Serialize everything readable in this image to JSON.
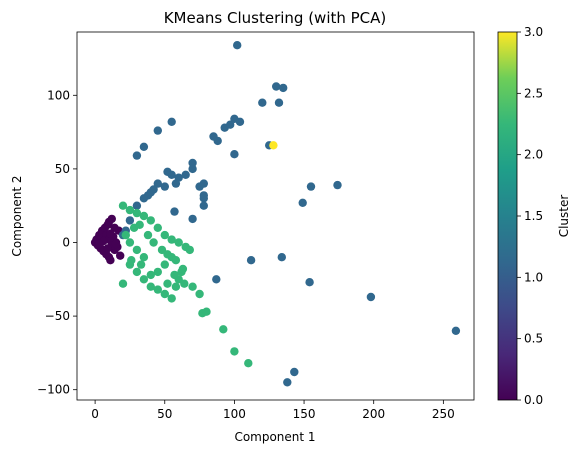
{
  "chart_data": {
    "type": "scatter",
    "title": "KMeans Clustering (with PCA)",
    "xlabel": "Component 1",
    "ylabel": "Component 2",
    "xlim": [
      -13,
      272
    ],
    "ylim": [
      -107,
      143
    ],
    "xticks": [
      0,
      50,
      100,
      150,
      200,
      250
    ],
    "yticks": [
      -100,
      -50,
      0,
      50,
      100
    ],
    "grid": false,
    "colormap": "viridis",
    "colorbar": {
      "label": "Cluster",
      "range": [
        0,
        3
      ],
      "ticks": [
        "0.0",
        "0.5",
        "1.0",
        "1.5",
        "2.0",
        "2.5",
        "3.0"
      ]
    },
    "series": [
      {
        "cluster": 0,
        "color": "#440154",
        "points": [
          [
            0,
            0
          ],
          [
            1,
            2
          ],
          [
            2,
            -2
          ],
          [
            3,
            5
          ],
          [
            4,
            -4
          ],
          [
            5,
            8
          ],
          [
            6,
            -6
          ],
          [
            7,
            10
          ],
          [
            8,
            -8
          ],
          [
            9,
            12
          ],
          [
            10,
            -10
          ],
          [
            10,
            14
          ],
          [
            11,
            -12
          ],
          [
            12,
            16
          ],
          [
            13,
            4
          ],
          [
            14,
            -5
          ],
          [
            15,
            0
          ],
          [
            16,
            -3
          ],
          [
            17,
            8
          ],
          [
            18,
            -9
          ],
          [
            5,
            3
          ],
          [
            8,
            5
          ],
          [
            10,
            2
          ],
          [
            12,
            -2
          ],
          [
            14,
            10
          ],
          [
            15,
            -1
          ],
          [
            11,
            6
          ],
          [
            6,
            1
          ],
          [
            3,
            -1
          ],
          [
            9,
            -4
          ]
        ]
      },
      {
        "cluster": 1,
        "color": "#31688e",
        "points": [
          [
            102,
            134
          ],
          [
            130,
            106
          ],
          [
            135,
            105
          ],
          [
            120,
            95
          ],
          [
            132,
            95
          ],
          [
            93,
            78
          ],
          [
            97,
            80
          ],
          [
            100,
            84
          ],
          [
            104,
            82
          ],
          [
            55,
            82
          ],
          [
            45,
            76
          ],
          [
            85,
            72
          ],
          [
            88,
            69
          ],
          [
            35,
            65
          ],
          [
            30,
            59
          ],
          [
            125,
            66
          ],
          [
            100,
            60
          ],
          [
            70,
            54
          ],
          [
            70,
            50
          ],
          [
            52,
            48
          ],
          [
            55,
            46
          ],
          [
            60,
            44
          ],
          [
            65,
            46
          ],
          [
            58,
            40
          ],
          [
            45,
            40
          ],
          [
            50,
            38
          ],
          [
            42,
            36
          ],
          [
            40,
            34
          ],
          [
            38,
            32
          ],
          [
            75,
            38
          ],
          [
            78,
            40
          ],
          [
            78,
            32
          ],
          [
            78,
            30
          ],
          [
            78,
            25
          ],
          [
            57,
            21
          ],
          [
            70,
            16
          ],
          [
            155,
            38
          ],
          [
            174,
            39
          ],
          [
            149,
            27
          ],
          [
            112,
            -12
          ],
          [
            134,
            -10
          ],
          [
            154,
            -27
          ],
          [
            198,
            -37
          ],
          [
            259,
            -60
          ],
          [
            87,
            -25
          ],
          [
            143,
            -88
          ],
          [
            138,
            -95
          ],
          [
            35,
            30
          ],
          [
            30,
            25
          ],
          [
            25,
            15
          ],
          [
            22,
            8
          ],
          [
            20,
            5
          ]
        ]
      },
      {
        "cluster": 2,
        "color": "#35b779",
        "points": [
          [
            20,
            25
          ],
          [
            25,
            22
          ],
          [
            30,
            20
          ],
          [
            35,
            18
          ],
          [
            40,
            15
          ],
          [
            45,
            10
          ],
          [
            50,
            5
          ],
          [
            55,
            2
          ],
          [
            60,
            0
          ],
          [
            65,
            -3
          ],
          [
            68,
            -5
          ],
          [
            20,
            -28
          ],
          [
            25,
            -15
          ],
          [
            30,
            -20
          ],
          [
            35,
            -25
          ],
          [
            40,
            -30
          ],
          [
            45,
            -32
          ],
          [
            50,
            -35
          ],
          [
            55,
            -38
          ],
          [
            58,
            -30
          ],
          [
            60,
            -25
          ],
          [
            62,
            -20
          ],
          [
            55,
            -10
          ],
          [
            50,
            -15
          ],
          [
            45,
            -20
          ],
          [
            40,
            -22
          ],
          [
            35,
            -10
          ],
          [
            30,
            -5
          ],
          [
            25,
            0
          ],
          [
            22,
            5
          ],
          [
            28,
            10
          ],
          [
            32,
            12
          ],
          [
            38,
            5
          ],
          [
            42,
            0
          ],
          [
            48,
            -5
          ],
          [
            52,
            -8
          ],
          [
            57,
            -22
          ],
          [
            64,
            -28
          ],
          [
            70,
            -30
          ],
          [
            75,
            -35
          ],
          [
            77,
            -48
          ],
          [
            80,
            -47
          ],
          [
            92,
            -59
          ],
          [
            100,
            -74
          ],
          [
            110,
            -82
          ],
          [
            52,
            -28
          ],
          [
            58,
            -12
          ],
          [
            63,
            -18
          ],
          [
            26,
            -12
          ],
          [
            33,
            -15
          ]
        ]
      },
      {
        "cluster": 3,
        "color": "#fde725",
        "points": [
          [
            128,
            66
          ]
        ]
      }
    ]
  }
}
